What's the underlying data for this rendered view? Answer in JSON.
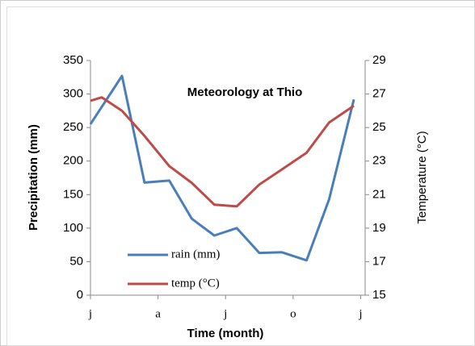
{
  "chart_data": {
    "type": "line",
    "title": "Meteorology at Thio",
    "xlabel": "Time (month)",
    "ylabel": "Precipitation (mm)",
    "y2label": "Temperature (°C)",
    "xlim": [
      0,
      12.2
    ],
    "xticks": [
      {
        "value": 0,
        "label": "j"
      },
      {
        "value": 3,
        "label": "a"
      },
      {
        "value": 6,
        "label": "j"
      },
      {
        "value": 9,
        "label": "o"
      },
      {
        "value": 12,
        "label": "j"
      }
    ],
    "ylim": [
      0,
      350
    ],
    "yticks": [
      0,
      50,
      100,
      150,
      200,
      250,
      300,
      350
    ],
    "y2lim": [
      15,
      29
    ],
    "y2ticks": [
      15,
      17,
      19,
      21,
      23,
      25,
      27,
      29
    ],
    "legend": "inside-lower-left",
    "series": [
      {
        "name": "rain (mm)",
        "color": "#4a7ebb",
        "x": [
          0,
          1.4,
          2.4,
          3.5,
          4.5,
          5.5,
          6.5,
          7.5,
          8.5,
          9.6,
          10.6,
          11.7
        ],
        "values": [
          255,
          327,
          168,
          171,
          114,
          89,
          100,
          63,
          64,
          52,
          143,
          292
        ]
      },
      {
        "name": "temp (°C)",
        "color": "#be4b48",
        "axis": "y2",
        "x": [
          0,
          0.5,
          1.4,
          2.4,
          3.5,
          4.5,
          5.5,
          6.5,
          7.5,
          8.5,
          9.6,
          10.6,
          11.7
        ],
        "values": [
          26.6,
          26.8,
          26.0,
          24.5,
          22.7,
          21.7,
          20.4,
          20.3,
          21.6,
          22.5,
          23.5,
          25.3,
          26.3
        ]
      }
    ]
  }
}
